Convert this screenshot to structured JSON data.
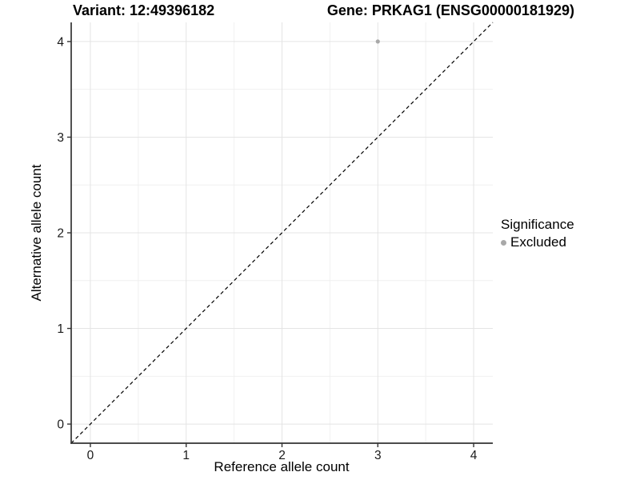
{
  "titles": {
    "variant": "Variant: 12:49396182",
    "gene": "Gene: PRKAG1 (ENSG00000181929)"
  },
  "axes": {
    "x": {
      "label": "Reference allele count",
      "ticks": [
        "0",
        "1",
        "2",
        "3",
        "4"
      ]
    },
    "y": {
      "label": "Alternative allele count",
      "ticks": [
        "0",
        "1",
        "2",
        "3",
        "4"
      ]
    }
  },
  "legend": {
    "title": "Significance",
    "items": [
      {
        "label": "Excluded",
        "color": "#a8a8a8"
      }
    ]
  },
  "chart_data": {
    "type": "scatter",
    "title": "Variant: 12:49396182 | Gene: PRKAG1 (ENSG00000181929)",
    "xlabel": "Reference allele count",
    "ylabel": "Alternative allele count",
    "xlim": [
      -0.2,
      4.2
    ],
    "ylim": [
      -0.2,
      4.2
    ],
    "x_ticks": [
      0,
      1,
      2,
      3,
      4
    ],
    "y_ticks": [
      0,
      1,
      2,
      3,
      4
    ],
    "grid": true,
    "legend_position": "right",
    "series": [
      {
        "name": "Excluded",
        "color": "#a8a8a8",
        "points": [
          {
            "x": 3,
            "y": 4
          }
        ]
      }
    ],
    "reference_line": {
      "type": "identity y=x",
      "style": "dashed",
      "color": "#000000"
    }
  },
  "colors": {
    "background": "#ffffff",
    "grid_major": "#e4e4e4",
    "grid_minor": "#f0f0f0",
    "axis": "#333333",
    "tick_text": "#1a1a1a",
    "point": "#b3b3b3",
    "ref_line": "#000000"
  }
}
